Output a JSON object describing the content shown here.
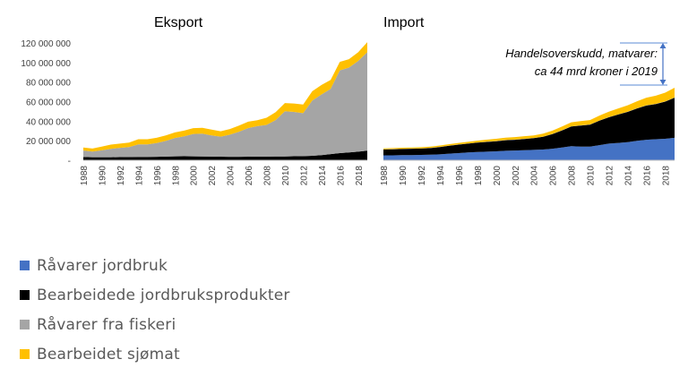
{
  "chart_data": [
    {
      "type": "area",
      "stacked": true,
      "title": "Eksport",
      "x": [
        1988,
        1989,
        1990,
        1991,
        1992,
        1993,
        1994,
        1995,
        1996,
        1997,
        1998,
        1999,
        2000,
        2001,
        2002,
        2003,
        2004,
        2005,
        2006,
        2007,
        2008,
        2009,
        2010,
        2011,
        2012,
        2013,
        2014,
        2015,
        2016,
        2017,
        2018,
        2019
      ],
      "x_ticks": [
        "1988",
        "1990",
        "1992",
        "1994",
        "1996",
        "1998",
        "2000",
        "2002",
        "2004",
        "2006",
        "2008",
        "2010",
        "2012",
        "2014",
        "2016",
        "2018"
      ],
      "y_ticks": [
        "-",
        "20 000 000",
        "40 000 000",
        "60 000 000",
        "80 000 000",
        "100 000 000",
        "120 000 000"
      ],
      "ylim": [
        0,
        120000000
      ],
      "series": [
        {
          "name": "Råvarer jordbruk",
          "color": "#4472C4",
          "values": [
            300000,
            300000,
            300000,
            300000,
            300000,
            300000,
            300000,
            300000,
            300000,
            300000,
            300000,
            300000,
            300000,
            300000,
            300000,
            300000,
            300000,
            300000,
            300000,
            300000,
            300000,
            300000,
            300000,
            300000,
            300000,
            300000,
            300000,
            300000,
            300000,
            300000,
            300000,
            300000
          ]
        },
        {
          "name": "Bearbeidede jordbruksprodukter",
          "color": "#000000",
          "values": [
            3000000,
            2800000,
            2800000,
            2800000,
            2900000,
            3000000,
            3100000,
            3200000,
            3300000,
            3500000,
            3700000,
            3800000,
            3700000,
            3600000,
            3500000,
            3400000,
            3300000,
            3300000,
            3400000,
            3500000,
            3500000,
            3600000,
            3600000,
            3800000,
            3900000,
            4300000,
            5000000,
            6000000,
            7000000,
            7700000,
            8500000,
            9500000
          ]
        },
        {
          "name": "Råvarer fra fiskeri",
          "color": "#A5A5A5",
          "values": [
            6700000,
            5900000,
            7100000,
            8600000,
            9500000,
            10200000,
            12800000,
            12700000,
            14100000,
            16000000,
            18800000,
            20400000,
            22900000,
            23300000,
            21700000,
            20500000,
            22600000,
            25600000,
            29300000,
            31100000,
            32400000,
            37200000,
            46300000,
            45400000,
            44000000,
            56500000,
            62000000,
            66800000,
            84700000,
            86800000,
            92800000,
            100800000
          ]
        },
        {
          "name": "Bearbeidet sjømat",
          "color": "#FFC000",
          "values": [
            3000000,
            3000000,
            3800000,
            4300000,
            4300000,
            4500000,
            5300000,
            5300000,
            5300000,
            5700000,
            5700000,
            5800000,
            6000000,
            6000000,
            5800000,
            5500000,
            5800000,
            6300000,
            6500000,
            6100000,
            7300000,
            8100000,
            8300000,
            8600000,
            8800000,
            9500000,
            9700000,
            9200000,
            8700000,
            8600000,
            8900000,
            10200000
          ]
        }
      ]
    },
    {
      "type": "area",
      "stacked": true,
      "title": "Import",
      "x": [
        1988,
        1989,
        1990,
        1991,
        1992,
        1993,
        1994,
        1995,
        1996,
        1997,
        1998,
        1999,
        2000,
        2001,
        2002,
        2003,
        2004,
        2005,
        2006,
        2007,
        2008,
        2009,
        2010,
        2011,
        2012,
        2013,
        2014,
        2015,
        2016,
        2017,
        2018,
        2019
      ],
      "x_ticks": [
        "1988",
        "1990",
        "1992",
        "1994",
        "1996",
        "1998",
        "2000",
        "2002",
        "2004",
        "2006",
        "2008",
        "2010",
        "2012",
        "2014",
        "2016",
        "2018"
      ],
      "ylim": [
        0,
        120000000
      ],
      "series": [
        {
          "name": "Råvarer jordbruk",
          "color": "#4472C4",
          "values": [
            5000000,
            5000000,
            5200000,
            5300000,
            5500000,
            5700000,
            6000000,
            6800000,
            7300000,
            8000000,
            8500000,
            8800000,
            9200000,
            9700000,
            10000000,
            10300000,
            10600000,
            11000000,
            11800000,
            13000000,
            14500000,
            14000000,
            13900000,
            15500000,
            17000000,
            17800000,
            18500000,
            20000000,
            21000000,
            21500000,
            22000000,
            23000000
          ]
        },
        {
          "name": "Bearbeidede jordbruksprodukter",
          "color": "#000000",
          "values": [
            6000000,
            6300000,
            6300000,
            6500000,
            6500000,
            6800000,
            7500000,
            8000000,
            8700000,
            9000000,
            9500000,
            10000000,
            10300000,
            10800000,
            11000000,
            11500000,
            12000000,
            13000000,
            15000000,
            17500000,
            20000000,
            21500000,
            22500000,
            25000000,
            27000000,
            29000000,
            31000000,
            33000000,
            35000000,
            36000000,
            38000000,
            41000000
          ]
        },
        {
          "name": "Råvarer fra fiskeri",
          "color": "#A5A5A5",
          "values": [
            200000,
            200000,
            200000,
            200000,
            200000,
            200000,
            200000,
            200000,
            200000,
            200000,
            200000,
            200000,
            200000,
            200000,
            200000,
            200000,
            200000,
            200000,
            200000,
            200000,
            200000,
            200000,
            200000,
            200000,
            200000,
            200000,
            200000,
            200000,
            200000,
            200000,
            200000,
            200000
          ]
        },
        {
          "name": "Bearbeidet sjømat",
          "color": "#FFC000",
          "values": [
            1000000,
            1000000,
            1100000,
            1100000,
            1200000,
            1300000,
            1400000,
            1500000,
            1600000,
            1700000,
            1900000,
            2100000,
            2300000,
            2400000,
            2500000,
            2600000,
            2700000,
            3000000,
            3300000,
            3700000,
            4100000,
            4300000,
            4500000,
            5000000,
            5500000,
            6000000,
            6500000,
            7200000,
            7800000,
            8300000,
            9000000,
            10000000
          ]
        }
      ],
      "annotation": {
        "lines": [
          "Handelsoverskudd, matvarer:",
          "ca 44 mrd kroner i 2019"
        ]
      }
    }
  ],
  "legend": [
    {
      "label": "Råvarer jordbruk",
      "color": "#4472C4"
    },
    {
      "label": "Bearbeidede jordbruksprodukter",
      "color": "#000000"
    },
    {
      "label": "Råvarer fra fiskeri",
      "color": "#A5A5A5"
    },
    {
      "label": "Bearbeidet sjømat",
      "color": "#FFC000"
    }
  ]
}
